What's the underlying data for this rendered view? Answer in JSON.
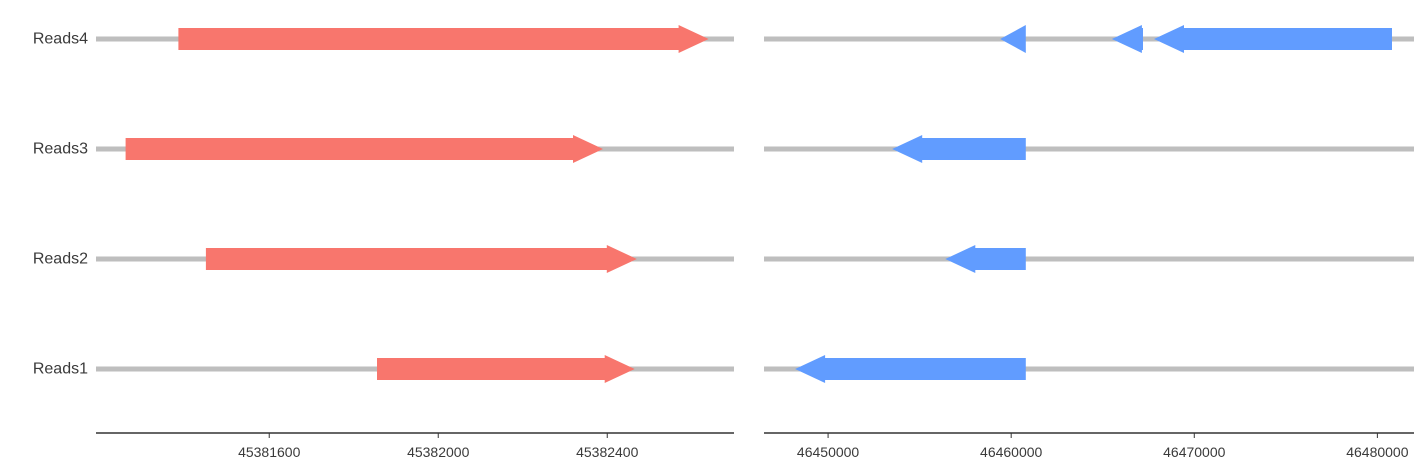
{
  "chart_data": {
    "type": "gene-arrow-tracks",
    "title": "",
    "xlabel": "",
    "ylabel": "",
    "rows": [
      "Reads1",
      "Reads2",
      "Reads3",
      "Reads4"
    ],
    "colors": {
      "forward": "#F8766D",
      "reverse": "#619CFF",
      "track": "#BEBEBE",
      "axis": "#333333",
      "text": "#3a3a3a"
    },
    "panels": [
      {
        "id": "left",
        "xlim": [
          45381190,
          45382700
        ],
        "ticks": [
          45381600,
          45382000,
          45382400
        ],
        "tick_labels": [
          "45381600",
          "45382000",
          "45382400"
        ],
        "segments": [
          {
            "row": "Reads1",
            "start": 45381855,
            "end": 45382465,
            "strand": "+"
          },
          {
            "row": "Reads2",
            "start": 45381450,
            "end": 45382470,
            "strand": "+"
          },
          {
            "row": "Reads3",
            "start": 45381260,
            "end": 45382390,
            "strand": "+"
          },
          {
            "row": "Reads4",
            "start": 45381385,
            "end": 45382640,
            "strand": "+"
          }
        ]
      },
      {
        "id": "right",
        "xlim": [
          46446500,
          46482000
        ],
        "ticks": [
          46450000,
          46460000,
          46470000,
          46480000
        ],
        "tick_labels": [
          "46450000",
          "46460000",
          "46470000",
          "46480000"
        ],
        "segments": [
          {
            "row": "Reads1",
            "start": 46448200,
            "end": 46460800,
            "strand": "-"
          },
          {
            "row": "Reads2",
            "start": 46456400,
            "end": 46460800,
            "strand": "-"
          },
          {
            "row": "Reads3",
            "start": 46453500,
            "end": 46460800,
            "strand": "-"
          },
          {
            "row": "Reads4",
            "start": 46459400,
            "end": 46460800,
            "strand": "-"
          },
          {
            "row": "Reads4",
            "start": 46465500,
            "end": 46467200,
            "strand": "-"
          },
          {
            "row": "Reads4",
            "start": 46467800,
            "end": 46480800,
            "strand": "-"
          }
        ]
      }
    ]
  }
}
